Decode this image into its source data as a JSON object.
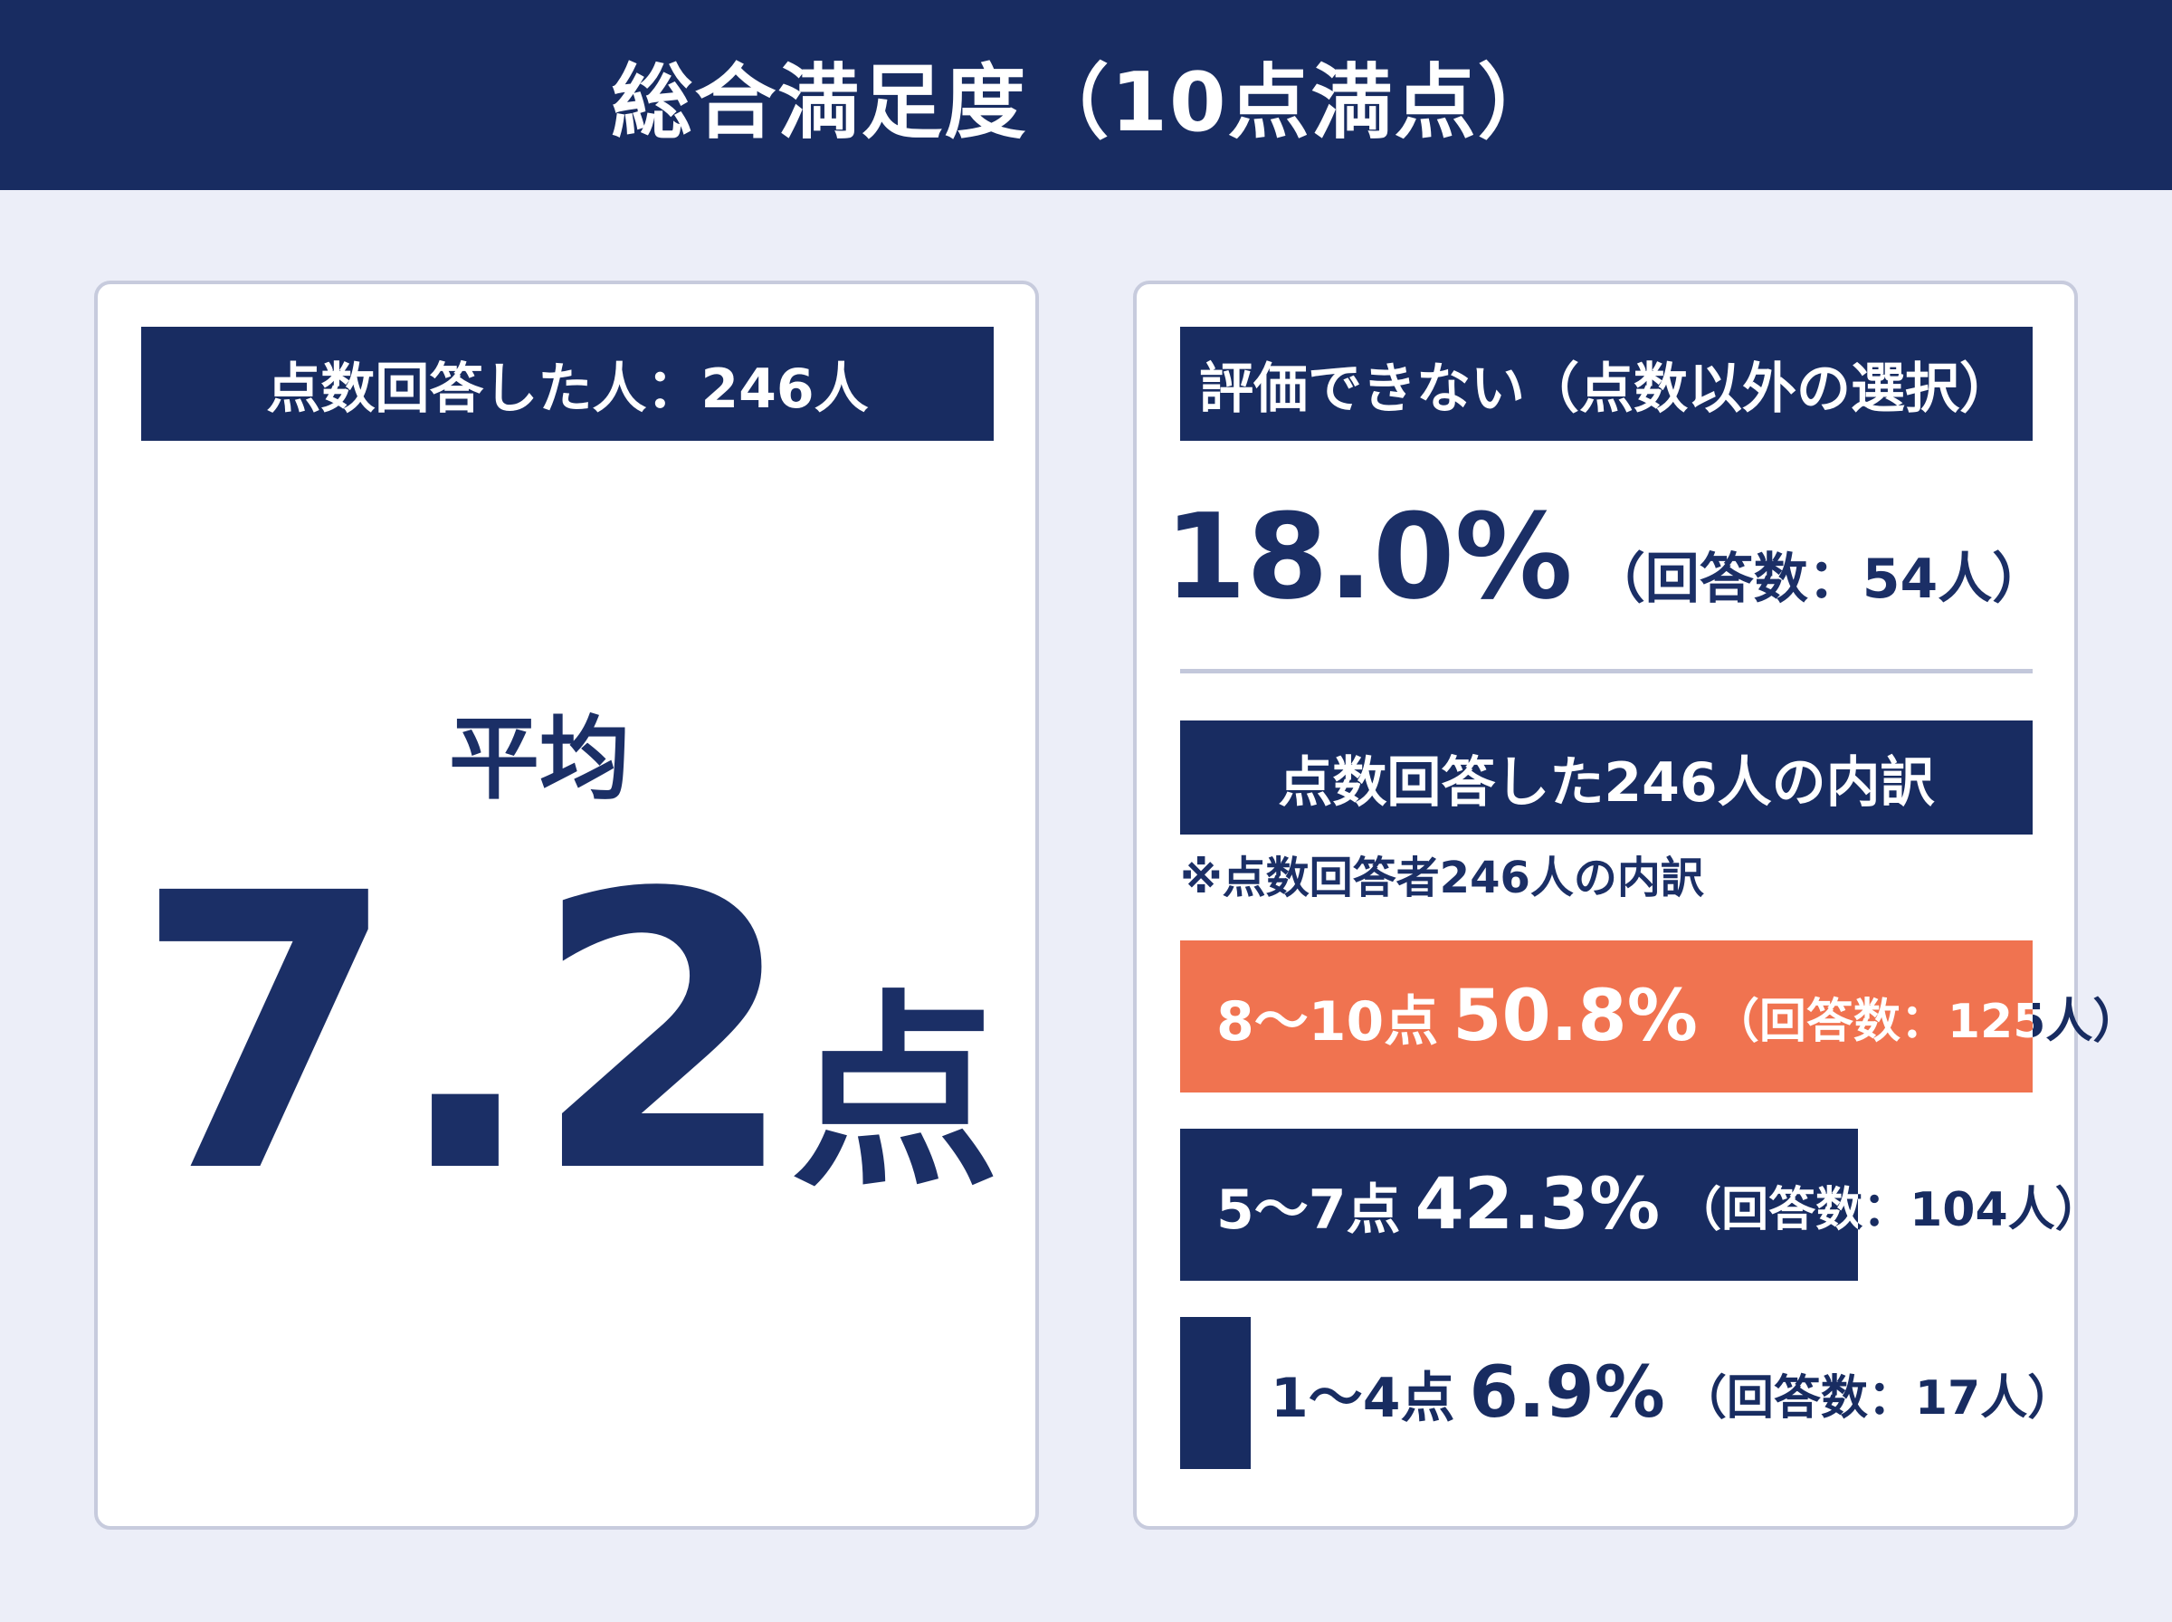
{
  "title": "総合満足度（10点満点）",
  "left": {
    "header": "点数回答した人：246人",
    "avg_label": "平均",
    "avg_value": "7.2",
    "avg_unit": "点"
  },
  "right": {
    "na_header": "評価できない（点数以外の選択）",
    "na_pct": "18.0%",
    "na_count": "（回答数：54人）",
    "breakdown_header": "点数回答した246人の内訳",
    "note": "※点数回答者246人の内訳"
  },
  "colors": {
    "navy": "#182c61",
    "orange": "#f07350",
    "background": "#eceef8"
  },
  "chart_data": {
    "type": "bar",
    "orientation": "horizontal",
    "categories": [
      "8〜10点",
      "5〜7点",
      "1〜4点"
    ],
    "values": [
      50.8,
      42.3,
      6.9
    ],
    "counts": [
      125,
      104,
      17
    ],
    "pct_labels": [
      "50.8%",
      "42.3%",
      "6.9%"
    ],
    "count_labels": [
      "（回答数：125人）",
      "（回答数：104人）",
      "（回答数：17人）"
    ],
    "colors": [
      "#f07350",
      "#182c61",
      "#182c61"
    ]
  }
}
